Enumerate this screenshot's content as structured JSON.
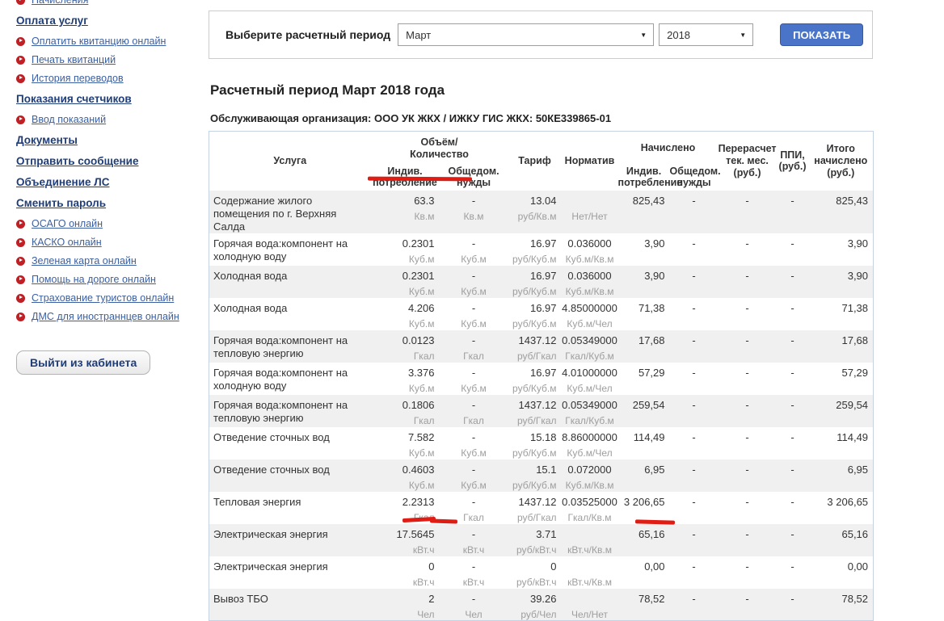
{
  "sidebar": {
    "items": [
      {
        "type": "link",
        "label": "Начисления",
        "cut": true
      },
      {
        "type": "header",
        "label": "Оплата услуг"
      },
      {
        "type": "link",
        "label": "Оплатить квитанцию онлайн"
      },
      {
        "type": "link",
        "label": "Печать квитанций"
      },
      {
        "type": "link",
        "label": "История переводов"
      },
      {
        "type": "header",
        "label": "Показания счетчиков"
      },
      {
        "type": "link",
        "label": "Ввод показаний"
      },
      {
        "type": "header",
        "label": "Документы"
      },
      {
        "type": "header",
        "label": "Отправить сообщение"
      },
      {
        "type": "header",
        "label": "Объединение ЛС"
      },
      {
        "type": "header",
        "label": "Сменить пароль"
      },
      {
        "type": "link",
        "label": "ОСАГО онлайн"
      },
      {
        "type": "link",
        "label": "КАСКО онлайн"
      },
      {
        "type": "link",
        "label": "Зеленая карта онлайн"
      },
      {
        "type": "link",
        "label": "Помощь на дороге онлайн"
      },
      {
        "type": "link",
        "label": "Страхование туристов онлайн"
      },
      {
        "type": "link",
        "label": "ДМС для иностраннцев онлайн"
      }
    ],
    "logout_button": "Выйти из кабинета"
  },
  "filter": {
    "label": "Выберите расчетный период",
    "month_value": "Март",
    "year_value": "2018",
    "show_button": "ПОКАЗАТЬ"
  },
  "main": {
    "title": "Расчетный период Март 2018 года",
    "org_line": "Обслуживающая организация: ООО УК ЖКХ / ИЖКУ ГИС ЖКХ: 50КЕ339865-01"
  },
  "table": {
    "headers": {
      "service": "Услуга",
      "volume_group": "Объём/\nКоличество",
      "ind_consumption": "Индив.\nпотребление",
      "common_needs": "Общедом.\nнужды",
      "tariff": "Тариф",
      "normative": "Норматив",
      "accrued_group": "Начислено",
      "recalc": "Перерасчет\nтек. мес.\n(руб.)",
      "ppi": "ППИ,\n(руб.)",
      "total": "Итого\nначислено\n(руб.)"
    },
    "rows": [
      {
        "service": "Содержание жилого помещения по г. Верхняя Салда",
        "ind_vol": "63.3",
        "ind_unit": "Кв.м",
        "common_vol": "-",
        "common_unit": "Кв.м",
        "tariff": "13.04",
        "tariff_unit": "руб/Кв.м",
        "norm": "",
        "norm_unit": "Нет/Нет",
        "accrued_ind": "825,43",
        "accrued_common": "-",
        "recalc": "-",
        "ppi": "-",
        "total": "825,43"
      },
      {
        "service": "Горячая вода:компонент на холодную воду",
        "ind_vol": "0.2301",
        "ind_unit": "Куб.м",
        "common_vol": "-",
        "common_unit": "Куб.м",
        "tariff": "16.97",
        "tariff_unit": "руб/Куб.м",
        "norm": "0.036000",
        "norm_unit": "Куб.м/Кв.м",
        "accrued_ind": "3,90",
        "accrued_common": "-",
        "recalc": "-",
        "ppi": "-",
        "total": "3,90"
      },
      {
        "service": "Холодная вода",
        "ind_vol": "0.2301",
        "ind_unit": "Куб.м",
        "common_vol": "-",
        "common_unit": "Куб.м",
        "tariff": "16.97",
        "tariff_unit": "руб/Куб.м",
        "norm": "0.036000",
        "norm_unit": "Куб.м/Кв.м",
        "accrued_ind": "3,90",
        "accrued_common": "-",
        "recalc": "-",
        "ppi": "-",
        "total": "3,90"
      },
      {
        "service": "Холодная вода",
        "ind_vol": "4.206",
        "ind_unit": "Куб.м",
        "common_vol": "-",
        "common_unit": "Куб.м",
        "tariff": "16.97",
        "tariff_unit": "руб/Куб.м",
        "norm": "4.85000000",
        "norm_unit": "Куб.м/Чел",
        "accrued_ind": "71,38",
        "accrued_common": "-",
        "recalc": "-",
        "ppi": "-",
        "total": "71,38"
      },
      {
        "service": "Горячая вода:компонент на тепловую энергию",
        "ind_vol": "0.0123",
        "ind_unit": "Гкал",
        "common_vol": "-",
        "common_unit": "Гкал",
        "tariff": "1437.12",
        "tariff_unit": "руб/Гкал",
        "norm": "0.05349000",
        "norm_unit": "Гкал/Куб.м",
        "accrued_ind": "17,68",
        "accrued_common": "-",
        "recalc": "-",
        "ppi": "-",
        "total": "17,68"
      },
      {
        "service": "Горячая вода:компонент на холодную воду",
        "ind_vol": "3.376",
        "ind_unit": "Куб.м",
        "common_vol": "-",
        "common_unit": "Куб.м",
        "tariff": "16.97",
        "tariff_unit": "руб/Куб.м",
        "norm": "4.01000000",
        "norm_unit": "Куб.м/Чел",
        "accrued_ind": "57,29",
        "accrued_common": "-",
        "recalc": "-",
        "ppi": "-",
        "total": "57,29"
      },
      {
        "service": "Горячая вода:компонент на тепловую энергию",
        "ind_vol": "0.1806",
        "ind_unit": "Гкал",
        "common_vol": "-",
        "common_unit": "Гкал",
        "tariff": "1437.12",
        "tariff_unit": "руб/Гкал",
        "norm": "0.05349000",
        "norm_unit": "Гкал/Куб.м",
        "accrued_ind": "259,54",
        "accrued_common": "-",
        "recalc": "-",
        "ppi": "-",
        "total": "259,54"
      },
      {
        "service": "Отведение сточных вод",
        "ind_vol": "7.582",
        "ind_unit": "Куб.м",
        "common_vol": "-",
        "common_unit": "Куб.м",
        "tariff": "15.18",
        "tariff_unit": "руб/Куб.м",
        "norm": "8.86000000",
        "norm_unit": "Куб.м/Чел",
        "accrued_ind": "114,49",
        "accrued_common": "-",
        "recalc": "-",
        "ppi": "-",
        "total": "114,49"
      },
      {
        "service": "Отведение сточных вод",
        "ind_vol": "0.4603",
        "ind_unit": "Куб.м",
        "common_vol": "-",
        "common_unit": "Куб.м",
        "tariff": "15.1",
        "tariff_unit": "руб/Куб.м",
        "norm": "0.072000",
        "norm_unit": "Куб.м/Кв.м",
        "accrued_ind": "6,95",
        "accrued_common": "-",
        "recalc": "-",
        "ppi": "-",
        "total": "6,95"
      },
      {
        "service": "Тепловая энергия",
        "ind_vol": "2.2313",
        "ind_unit": "Гкал",
        "common_vol": "-",
        "common_unit": "Гкал",
        "tariff": "1437.12",
        "tariff_unit": "руб/Гкал",
        "norm": "0.03525000",
        "norm_unit": "Гкал/Кв.м",
        "accrued_ind": "3 206,65",
        "accrued_common": "-",
        "recalc": "-",
        "ppi": "-",
        "total": "3 206,65"
      },
      {
        "service": "Электрическая энергия",
        "ind_vol": "17.5645",
        "ind_unit": "кВт.ч",
        "common_vol": "-",
        "common_unit": "кВт.ч",
        "tariff": "3.71",
        "tariff_unit": "руб/кВт.ч",
        "norm": "",
        "norm_unit": "кВт.ч/Кв.м",
        "accrued_ind": "65,16",
        "accrued_common": "-",
        "recalc": "-",
        "ppi": "-",
        "total": "65,16"
      },
      {
        "service": "Электрическая энергия",
        "ind_vol": "0",
        "ind_unit": "кВт.ч",
        "common_vol": "-",
        "common_unit": "кВт.ч",
        "tariff": "0",
        "tariff_unit": "руб/кВт.ч",
        "norm": "",
        "norm_unit": "кВт.ч/Кв.м",
        "accrued_ind": "0,00",
        "accrued_common": "-",
        "recalc": "-",
        "ppi": "-",
        "total": "0,00"
      },
      {
        "service": "Вывоз ТБО",
        "ind_vol": "2",
        "ind_unit": "Чел",
        "common_vol": "-",
        "common_unit": "Чел",
        "tariff": "39.26",
        "tariff_unit": "руб/Чел",
        "norm": "",
        "norm_unit": "Чел/Нет",
        "accrued_ind": "78,52",
        "accrued_common": "-",
        "recalc": "-",
        "ppi": "-",
        "total": "78,52"
      }
    ]
  },
  "annotations": {
    "color": "#df1d15"
  }
}
